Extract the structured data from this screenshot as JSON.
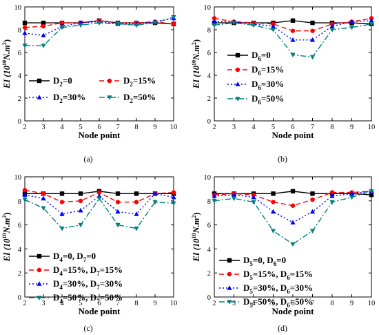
{
  "figure": {
    "panels": [
      {
        "label": "(a)"
      },
      {
        "label": "(b)"
      },
      {
        "label": "(c)"
      },
      {
        "label": "(d)"
      }
    ]
  },
  "chart_data": [
    {
      "type": "line",
      "label": "(a)",
      "xlabel": "Node point",
      "ylabel": "EI (10^10 N.m^2)",
      "ylabel_parts": {
        "main": "EI (10",
        "exp": "10",
        "unit": "N.m",
        "unit_exp": "2",
        "close": ")"
      },
      "xlim": [
        2,
        10
      ],
      "ylim": [
        0,
        10
      ],
      "x_ticks": [
        2,
        3,
        4,
        5,
        6,
        7,
        8,
        9,
        10
      ],
      "y_ticks": [
        0,
        2,
        4,
        6,
        8,
        10
      ],
      "grid": false,
      "legend_placement": "lower-center",
      "legend_columns": 2,
      "x": [
        2,
        3,
        4,
        5,
        6,
        7,
        8,
        9,
        10
      ],
      "series": [
        {
          "name": "D2=0",
          "legend_parts": [
            {
              "t": "D"
            },
            {
              "t": "2",
              "sub": true
            },
            {
              "t": "=0"
            }
          ],
          "values": [
            8.6,
            8.6,
            8.6,
            8.6,
            8.8,
            8.6,
            8.6,
            8.6,
            8.5
          ],
          "color": "#000000",
          "dash": "",
          "marker": "square"
        },
        {
          "name": "D2=15%",
          "legend_parts": [
            {
              "t": "D"
            },
            {
              "t": "2",
              "sub": true
            },
            {
              "t": "=15%"
            }
          ],
          "values": [
            8.2,
            8.3,
            8.6,
            8.6,
            8.8,
            8.6,
            8.6,
            8.7,
            8.5
          ],
          "color": "#ff0000",
          "dash": "7 4",
          "marker": "circle"
        },
        {
          "name": "D2=30%",
          "legend_parts": [
            {
              "t": "D"
            },
            {
              "t": "2",
              "sub": true
            },
            {
              "t": "=30%"
            }
          ],
          "values": [
            7.7,
            7.5,
            8.3,
            8.6,
            8.7,
            8.5,
            8.5,
            8.7,
            9.0
          ],
          "color": "#0000ff",
          "dash": "2 3",
          "marker": "triangle-up"
        },
        {
          "name": "D2=50%",
          "legend_parts": [
            {
              "t": "D"
            },
            {
              "t": "2",
              "sub": true
            },
            {
              "t": "=50%"
            }
          ],
          "values": [
            6.6,
            6.6,
            8.2,
            8.4,
            8.6,
            8.5,
            8.4,
            8.6,
            9.1
          ],
          "color": "#008080",
          "dash": "8 3 2 3",
          "marker": "triangle-down"
        }
      ]
    },
    {
      "type": "line",
      "label": "(b)",
      "xlabel": "Node point",
      "ylabel": "EI (10^10 N.m^2)",
      "ylabel_parts": {
        "main": "EI (10",
        "exp": "10",
        "unit": "N.m",
        "unit_exp": "2",
        "close": ")"
      },
      "xlim": [
        2,
        10
      ],
      "ylim": [
        0,
        10
      ],
      "x_ticks": [
        2,
        3,
        4,
        5,
        6,
        7,
        8,
        9,
        10
      ],
      "y_ticks": [
        0,
        2,
        4,
        6,
        8,
        10
      ],
      "grid": false,
      "legend_placement": "left",
      "legend_columns": 1,
      "x": [
        2,
        3,
        4,
        5,
        6,
        7,
        8,
        9,
        10
      ],
      "series": [
        {
          "name": "D6=0",
          "legend_parts": [
            {
              "t": "D"
            },
            {
              "t": "6",
              "sub": true
            },
            {
              "t": "=0"
            }
          ],
          "values": [
            8.6,
            8.6,
            8.6,
            8.6,
            8.8,
            8.6,
            8.6,
            8.6,
            8.5
          ],
          "color": "#000000",
          "dash": "",
          "marker": "square"
        },
        {
          "name": "D6=15%",
          "legend_parts": [
            {
              "t": "D"
            },
            {
              "t": "6",
              "sub": true
            },
            {
              "t": "=15%"
            }
          ],
          "values": [
            9.0,
            8.7,
            8.6,
            8.5,
            7.9,
            7.9,
            8.5,
            8.7,
            9.0
          ],
          "color": "#ff0000",
          "dash": "7 4",
          "marker": "circle"
        },
        {
          "name": "D6=30%",
          "legend_parts": [
            {
              "t": "D"
            },
            {
              "t": "6",
              "sub": true
            },
            {
              "t": "=30%"
            }
          ],
          "values": [
            8.7,
            8.7,
            8.5,
            8.3,
            7.1,
            7.1,
            8.3,
            8.7,
            8.8
          ],
          "color": "#0000ff",
          "dash": "2 3",
          "marker": "triangle-up"
        },
        {
          "name": "D6=50%",
          "legend_parts": [
            {
              "t": "D"
            },
            {
              "t": "6",
              "sub": true
            },
            {
              "t": "=50%"
            }
          ],
          "values": [
            8.4,
            8.6,
            8.4,
            8.0,
            5.8,
            5.6,
            8.0,
            8.2,
            8.5
          ],
          "color": "#008080",
          "dash": "8 3 2 3",
          "marker": "triangle-down"
        }
      ]
    },
    {
      "type": "line",
      "label": "(c)",
      "xlabel": "Node point",
      "ylabel": "EI (10^10 N.m^2)",
      "ylabel_parts": {
        "main": "EI (10",
        "exp": "10",
        "unit": "N.m",
        "unit_exp": "2",
        "close": ")"
      },
      "xlim": [
        2,
        10
      ],
      "ylim": [
        0,
        10
      ],
      "x_ticks": [
        2,
        3,
        4,
        5,
        6,
        7,
        8,
        9,
        10
      ],
      "y_ticks": [
        0,
        2,
        4,
        6,
        8,
        10
      ],
      "grid": false,
      "legend_placement": "lower-left",
      "legend_columns": 1,
      "x": [
        2,
        3,
        4,
        5,
        6,
        7,
        8,
        9,
        10
      ],
      "series": [
        {
          "name": "D4=0, D7=0",
          "legend_parts": [
            {
              "t": "D"
            },
            {
              "t": "4",
              "sub": true
            },
            {
              "t": "=0, D"
            },
            {
              "t": "7",
              "sub": true
            },
            {
              "t": "=0"
            }
          ],
          "values": [
            8.6,
            8.6,
            8.6,
            8.6,
            8.8,
            8.6,
            8.6,
            8.6,
            8.6
          ],
          "color": "#000000",
          "dash": "",
          "marker": "square"
        },
        {
          "name": "D4=15%, D7=15%",
          "legend_parts": [
            {
              "t": "D"
            },
            {
              "t": "4",
              "sub": true
            },
            {
              "t": "=15%, D"
            },
            {
              "t": "7",
              "sub": true
            },
            {
              "t": "=15%"
            }
          ],
          "values": [
            8.9,
            8.6,
            7.9,
            8.0,
            8.7,
            7.9,
            7.9,
            8.6,
            8.7
          ],
          "color": "#ff0000",
          "dash": "7 4",
          "marker": "circle"
        },
        {
          "name": "D4=30%, D7=30%",
          "legend_parts": [
            {
              "t": "D"
            },
            {
              "t": "4",
              "sub": true
            },
            {
              "t": "=30%, D"
            },
            {
              "t": "7",
              "sub": true
            },
            {
              "t": "=30%"
            }
          ],
          "values": [
            8.5,
            8.2,
            6.9,
            7.2,
            8.4,
            7.1,
            6.9,
            8.6,
            8.3
          ],
          "color": "#0000ff",
          "dash": "2 3",
          "marker": "triangle-up"
        },
        {
          "name": "D4=50%, D7=50%",
          "legend_parts": [
            {
              "t": "D"
            },
            {
              "t": "4",
              "sub": true
            },
            {
              "t": "=50%, D"
            },
            {
              "t": "7",
              "sub": true
            },
            {
              "t": "=50%"
            }
          ],
          "values": [
            8.1,
            7.4,
            5.7,
            6.0,
            8.2,
            6.0,
            5.7,
            7.9,
            7.8
          ],
          "color": "#008080",
          "dash": "8 3 2 3",
          "marker": "triangle-down"
        }
      ]
    },
    {
      "type": "line",
      "label": "(d)",
      "xlabel": "Node point",
      "ylabel": "EI (10^10 N.m^2)",
      "ylabel_parts": {
        "main": "EI (10",
        "exp": "10",
        "unit": "N.m",
        "unit_exp": "2",
        "close": ")"
      },
      "xlim": [
        2,
        10
      ],
      "ylim": [
        0,
        10
      ],
      "x_ticks": [
        2,
        3,
        4,
        5,
        6,
        7,
        8,
        9,
        10
      ],
      "y_ticks": [
        0,
        2,
        4,
        6,
        8,
        10
      ],
      "grid": false,
      "legend_placement": "lower-left",
      "legend_columns": 1,
      "x": [
        2,
        3,
        4,
        5,
        6,
        7,
        8,
        9,
        10
      ],
      "series": [
        {
          "name": "D5=0, D6=0",
          "legend_parts": [
            {
              "t": "D"
            },
            {
              "t": "5",
              "sub": true
            },
            {
              "t": "=0, D"
            },
            {
              "t": "6",
              "sub": true
            },
            {
              "t": "=0"
            }
          ],
          "values": [
            8.6,
            8.6,
            8.6,
            8.6,
            8.8,
            8.6,
            8.6,
            8.6,
            8.5
          ],
          "color": "#000000",
          "dash": "",
          "marker": "square"
        },
        {
          "name": "D5=15%, D6=15%",
          "legend_parts": [
            {
              "t": "D"
            },
            {
              "t": "5",
              "sub": true
            },
            {
              "t": "=15%, D"
            },
            {
              "t": "6",
              "sub": true
            },
            {
              "t": "=15%"
            }
          ],
          "values": [
            8.5,
            8.6,
            8.5,
            7.9,
            7.6,
            8.1,
            8.7,
            8.7,
            8.8
          ],
          "color": "#ff0000",
          "dash": "7 4",
          "marker": "circle"
        },
        {
          "name": "D5=30%, D6=30%",
          "legend_parts": [
            {
              "t": "D"
            },
            {
              "t": "5",
              "sub": true
            },
            {
              "t": "=30%, D"
            },
            {
              "t": "6",
              "sub": true
            },
            {
              "t": "=30%"
            }
          ],
          "values": [
            8.4,
            8.5,
            8.3,
            7.1,
            6.2,
            7.1,
            8.4,
            8.6,
            8.8
          ],
          "color": "#0000ff",
          "dash": "2 3",
          "marker": "triangle-up"
        },
        {
          "name": "D5=50%, D6=50%",
          "legend_parts": [
            {
              "t": "D"
            },
            {
              "t": "5",
              "sub": true
            },
            {
              "t": "=50%, D"
            },
            {
              "t": "6",
              "sub": true
            },
            {
              "t": "=50%"
            }
          ],
          "values": [
            8.0,
            8.2,
            7.9,
            5.5,
            4.4,
            5.5,
            7.9,
            8.3,
            8.8
          ],
          "color": "#008080",
          "dash": "8 3 2 3",
          "marker": "triangle-down"
        }
      ]
    }
  ]
}
